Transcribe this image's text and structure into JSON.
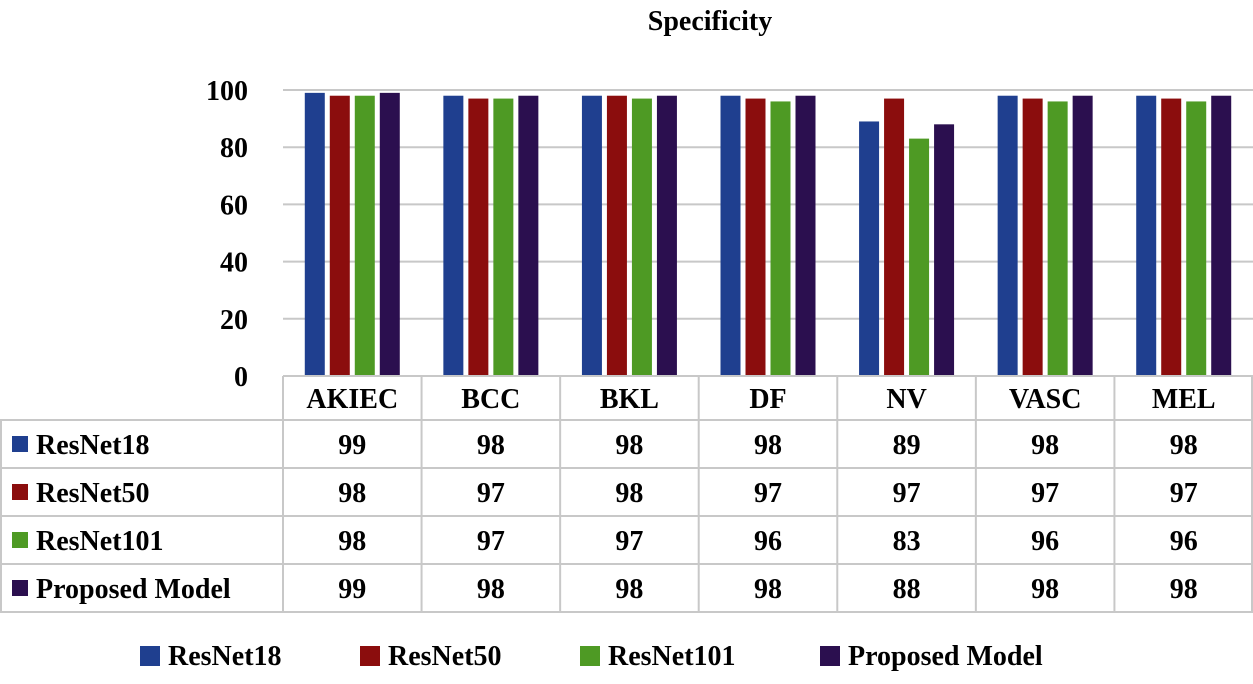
{
  "chart_data": {
    "type": "bar",
    "title": "Specificity",
    "xlabel": "",
    "ylabel": "",
    "ylim": [
      0,
      100
    ],
    "yticks": [
      0,
      20,
      40,
      60,
      80,
      100
    ],
    "grid": true,
    "legend_position": "bottom",
    "data_table": true,
    "categories": [
      "AKIEC",
      "BCC",
      "BKL",
      "DF",
      "NV",
      "VASC",
      "MEL"
    ],
    "series": [
      {
        "name": "ResNet18",
        "color": "#1f3f8f",
        "values": [
          99,
          98,
          98,
          98,
          89,
          98,
          98
        ]
      },
      {
        "name": "ResNet50",
        "color": "#8b0d0d",
        "values": [
          98,
          97,
          98,
          97,
          97,
          97,
          97
        ]
      },
      {
        "name": "ResNet101",
        "color": "#4e9a24",
        "values": [
          98,
          97,
          97,
          96,
          83,
          96,
          96
        ]
      },
      {
        "name": "Proposed Model",
        "color": "#2b0f4f",
        "values": [
          99,
          98,
          98,
          98,
          88,
          98,
          98
        ]
      }
    ]
  },
  "colors": {
    "grid": "#c8c8c8",
    "text": "#000000",
    "background": "#ffffff"
  }
}
